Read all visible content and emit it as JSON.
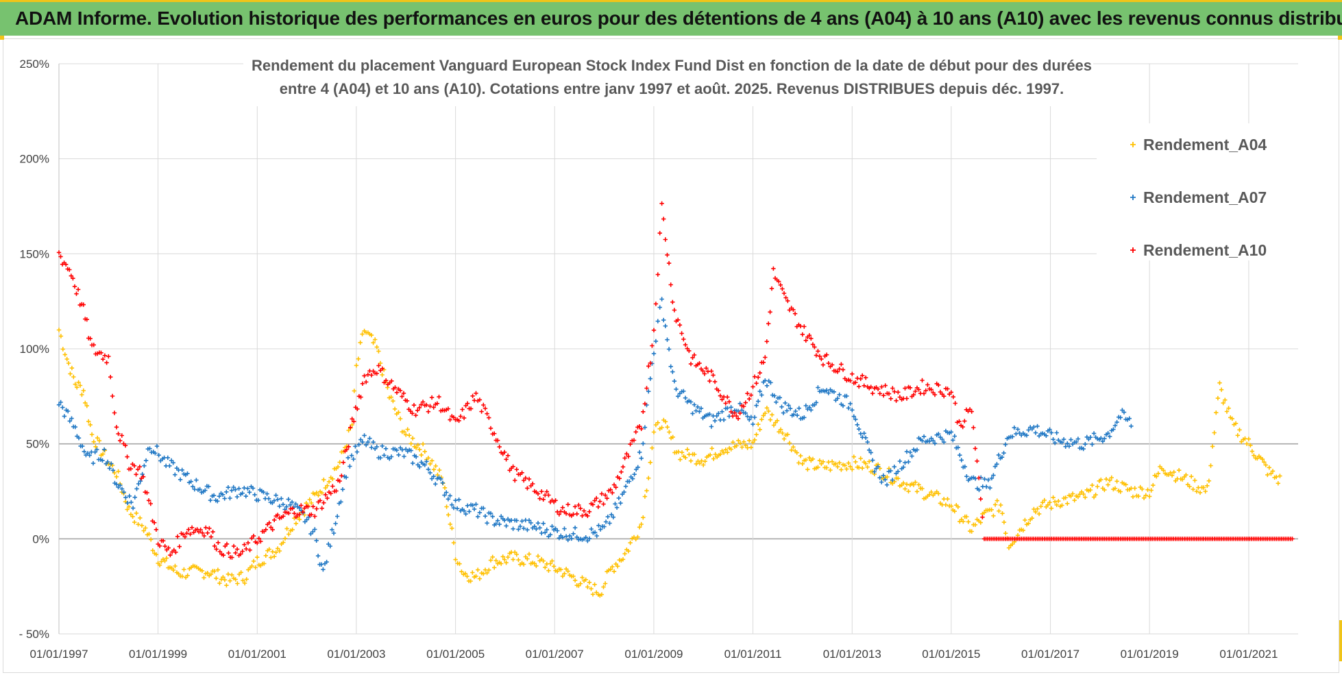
{
  "banner": {
    "title": "ADAM Informe. Evolution historique des performances en euros pour des détentions de 4 ans (A04) à 10 ans (A10) avec les revenus connus distribués"
  },
  "colors": {
    "banner_bg": "#77c26f",
    "a04": "#ffc000",
    "a07": "#1f77c4",
    "a10": "#ff0000",
    "grid": "#d9d9d9",
    "zero_line": "#a6a6a6"
  },
  "chart_data": {
    "type": "scatter",
    "title_lines": [
      "Rendement du placement Vanguard European Stock Index Fund Dist en fonction de la date de début pour des durées",
      "entre 4 (A04) et 10 ans (A10). Cotations entre janv 1997 et août. 2025. Revenus DISTRIBUES depuis déc. 1997."
    ],
    "xlabel": "",
    "ylabel": "",
    "x_range": [
      "1997-01-01",
      "2021-12-31"
    ],
    "x_ticks": [
      "01/01/1997",
      "01/01/1999",
      "01/01/2001",
      "01/01/2003",
      "01/01/2005",
      "01/01/2007",
      "01/01/2009",
      "01/01/2011",
      "01/01/2013",
      "01/01/2015",
      "01/01/2017",
      "01/01/2019",
      "01/01/2021"
    ],
    "ylim": [
      -50,
      250
    ],
    "y_ticks": [
      "- 50%",
      "0%",
      "50%",
      "100%",
      "150%",
      "200%",
      "250%"
    ],
    "grid": true,
    "legend_position": "top-right",
    "marker": "+",
    "series": [
      {
        "name": "Rendement_A04",
        "points": [
          [
            "1997-01-01",
            110
          ],
          [
            "1997-03-01",
            95
          ],
          [
            "1997-05-01",
            82
          ],
          [
            "1997-07-01",
            78
          ],
          [
            "1997-09-01",
            55
          ],
          [
            "1998-01-01",
            40
          ],
          [
            "1998-03-01",
            35
          ],
          [
            "1998-06-01",
            15
          ],
          [
            "1998-10-01",
            5
          ],
          [
            "1999-01-01",
            -10
          ],
          [
            "1999-06-01",
            -18
          ],
          [
            "2000-01-01",
            -17
          ],
          [
            "2000-06-01",
            -22
          ],
          [
            "2000-10-01",
            -20
          ],
          [
            "2001-01-01",
            -12
          ],
          [
            "2001-06-01",
            -5
          ],
          [
            "2001-10-01",
            10
          ],
          [
            "2002-03-01",
            22
          ],
          [
            "2002-09-01",
            40
          ],
          [
            "2002-12-01",
            60
          ],
          [
            "2003-01-01",
            90
          ],
          [
            "2003-03-01",
            110
          ],
          [
            "2003-06-01",
            100
          ],
          [
            "2003-09-01",
            75
          ],
          [
            "2004-01-01",
            55
          ],
          [
            "2004-06-01",
            45
          ],
          [
            "2004-10-01",
            30
          ],
          [
            "2005-01-01",
            -8
          ],
          [
            "2005-03-01",
            -18
          ],
          [
            "2005-06-01",
            -20
          ],
          [
            "2005-10-01",
            -12
          ],
          [
            "2006-03-01",
            -10
          ],
          [
            "2006-09-01",
            -12
          ],
          [
            "2007-03-01",
            -17
          ],
          [
            "2007-09-01",
            -25
          ],
          [
            "2007-12-01",
            -28
          ],
          [
            "2008-03-01",
            -15
          ],
          [
            "2008-06-01",
            -8
          ],
          [
            "2008-10-01",
            8
          ],
          [
            "2009-01-01",
            55
          ],
          [
            "2009-03-01",
            62
          ],
          [
            "2009-07-01",
            45
          ],
          [
            "2010-01-01",
            42
          ],
          [
            "2010-06-01",
            48
          ],
          [
            "2011-01-01",
            50
          ],
          [
            "2011-04-01",
            68
          ],
          [
            "2011-09-01",
            55
          ],
          [
            "2012-01-01",
            40
          ],
          [
            "2012-06-01",
            38
          ],
          [
            "2013-01-01",
            40
          ],
          [
            "2013-06-01",
            38
          ],
          [
            "2014-01-01",
            30
          ],
          [
            "2014-06-01",
            25
          ],
          [
            "2015-01-01",
            18
          ],
          [
            "2015-06-01",
            5
          ],
          [
            "2015-09-01",
            12
          ],
          [
            "2016-01-01",
            18
          ],
          [
            "2016-03-01",
            -3
          ],
          [
            "2016-09-01",
            15
          ],
          [
            "2017-03-01",
            20
          ],
          [
            "2017-09-01",
            22
          ],
          [
            "2018-03-01",
            30
          ],
          [
            "2018-09-01",
            25
          ],
          [
            "2019-01-01",
            25
          ],
          [
            "2019-04-01",
            38
          ],
          [
            "2019-09-01",
            32
          ],
          [
            "2020-03-01",
            25
          ],
          [
            "2020-06-01",
            80
          ],
          [
            "2020-09-01",
            60
          ],
          [
            "2021-01-01",
            50
          ],
          [
            "2021-06-01",
            35
          ],
          [
            "2021-09-01",
            30
          ]
        ]
      },
      {
        "name": "Rendement_A07",
        "points": [
          [
            "1997-01-01",
            72
          ],
          [
            "1997-05-01",
            58
          ],
          [
            "1997-08-01",
            42
          ],
          [
            "1997-12-01",
            45
          ],
          [
            "1998-03-01",
            30
          ],
          [
            "1998-07-01",
            18
          ],
          [
            "1998-11-01",
            50
          ],
          [
            "1999-03-01",
            40
          ],
          [
            "1999-09-01",
            30
          ],
          [
            "2000-03-01",
            22
          ],
          [
            "2000-09-01",
            26
          ],
          [
            "2001-03-01",
            22
          ],
          [
            "2001-09-01",
            18
          ],
          [
            "2002-01-01",
            10
          ],
          [
            "2002-03-01",
            2
          ],
          [
            "2002-05-01",
            -18
          ],
          [
            "2002-08-01",
            10
          ],
          [
            "2002-11-01",
            40
          ],
          [
            "2003-03-01",
            52
          ],
          [
            "2003-06-01",
            46
          ],
          [
            "2004-01-01",
            45
          ],
          [
            "2004-06-01",
            38
          ],
          [
            "2004-09-01",
            30
          ],
          [
            "2005-01-01",
            18
          ],
          [
            "2005-06-01",
            15
          ],
          [
            "2005-10-01",
            10
          ],
          [
            "2006-03-01",
            8
          ],
          [
            "2006-09-01",
            6
          ],
          [
            "2007-03-01",
            3
          ],
          [
            "2007-09-01",
            2
          ],
          [
            "2008-01-01",
            5
          ],
          [
            "2008-05-01",
            20
          ],
          [
            "2008-10-01",
            45
          ],
          [
            "2009-01-01",
            100
          ],
          [
            "2009-03-01",
            125
          ],
          [
            "2009-06-01",
            80
          ],
          [
            "2009-10-01",
            70
          ],
          [
            "2010-03-01",
            62
          ],
          [
            "2010-09-01",
            70
          ],
          [
            "2011-01-01",
            60
          ],
          [
            "2011-04-01",
            85
          ],
          [
            "2011-08-01",
            70
          ],
          [
            "2012-01-01",
            65
          ],
          [
            "2012-06-01",
            80
          ],
          [
            "2013-01-01",
            70
          ],
          [
            "2013-06-01",
            40
          ],
          [
            "2013-09-01",
            30
          ],
          [
            "2014-01-01",
            40
          ],
          [
            "2014-06-01",
            52
          ],
          [
            "2015-01-01",
            55
          ],
          [
            "2015-06-01",
            30
          ],
          [
            "2015-10-01",
            28
          ],
          [
            "2016-03-01",
            55
          ],
          [
            "2016-09-01",
            58
          ],
          [
            "2017-03-01",
            52
          ],
          [
            "2017-09-01",
            50
          ],
          [
            "2018-03-01",
            55
          ],
          [
            "2018-06-01",
            65
          ],
          [
            "2018-09-01",
            60
          ]
        ]
      },
      {
        "name": "Rendement_A10",
        "points": [
          [
            "1997-01-01",
            150
          ],
          [
            "1997-04-01",
            140
          ],
          [
            "1997-07-01",
            120
          ],
          [
            "1997-09-01",
            100
          ],
          [
            "1998-01-01",
            95
          ],
          [
            "1998-03-01",
            60
          ],
          [
            "1998-06-01",
            40
          ],
          [
            "1998-09-01",
            35
          ],
          [
            "1999-01-01",
            0
          ],
          [
            "1999-04-01",
            -8
          ],
          [
            "1999-08-01",
            5
          ],
          [
            "2000-01-01",
            5
          ],
          [
            "2000-04-01",
            -5
          ],
          [
            "2000-09-01",
            -8
          ],
          [
            "2001-01-01",
            0
          ],
          [
            "2001-06-01",
            10
          ],
          [
            "2001-10-01",
            15
          ],
          [
            "2002-03-01",
            15
          ],
          [
            "2002-09-01",
            30
          ],
          [
            "2002-12-01",
            60
          ],
          [
            "2003-03-01",
            85
          ],
          [
            "2003-06-01",
            90
          ],
          [
            "2003-10-01",
            80
          ],
          [
            "2004-03-01",
            68
          ],
          [
            "2004-09-01",
            72
          ],
          [
            "2005-01-01",
            60
          ],
          [
            "2005-06-01",
            75
          ],
          [
            "2005-10-01",
            58
          ],
          [
            "2006-03-01",
            35
          ],
          [
            "2006-09-01",
            25
          ],
          [
            "2007-03-01",
            15
          ],
          [
            "2007-09-01",
            15
          ],
          [
            "2008-03-01",
            25
          ],
          [
            "2008-06-01",
            40
          ],
          [
            "2008-10-01",
            60
          ],
          [
            "2009-01-01",
            110
          ],
          [
            "2009-03-01",
            175
          ],
          [
            "2009-06-01",
            120
          ],
          [
            "2009-10-01",
            95
          ],
          [
            "2010-03-01",
            85
          ],
          [
            "2010-06-01",
            75
          ],
          [
            "2010-09-01",
            65
          ],
          [
            "2011-01-01",
            80
          ],
          [
            "2011-04-01",
            95
          ],
          [
            "2011-06-01",
            140
          ],
          [
            "2011-09-01",
            125
          ],
          [
            "2012-01-01",
            110
          ],
          [
            "2012-06-01",
            95
          ],
          [
            "2013-01-01",
            85
          ],
          [
            "2013-06-01",
            80
          ],
          [
            "2014-01-01",
            75
          ],
          [
            "2014-06-01",
            80
          ],
          [
            "2015-01-01",
            78
          ],
          [
            "2015-03-01",
            60
          ],
          [
            "2015-06-01",
            68
          ],
          [
            "2015-09-01",
            0
          ],
          [
            "2016-06-01",
            0
          ],
          [
            "2017-06-01",
            0
          ],
          [
            "2018-06-01",
            0
          ],
          [
            "2019-06-01",
            0
          ],
          [
            "2020-06-01",
            0
          ],
          [
            "2021-06-01",
            0
          ],
          [
            "2021-12-01",
            0
          ]
        ]
      }
    ]
  }
}
